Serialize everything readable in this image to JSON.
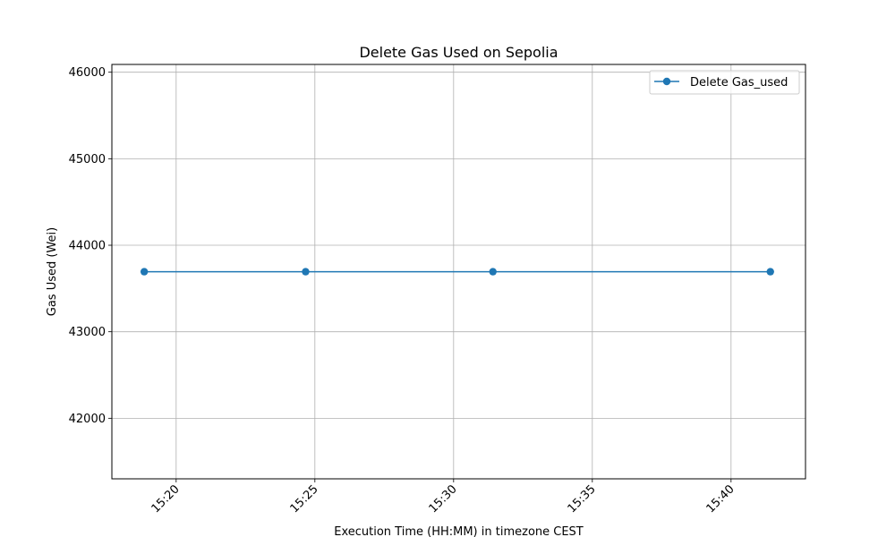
{
  "chart_data": {
    "type": "line",
    "title": "Delete Gas Used on Sepolia",
    "xlabel": "Execution Time (HH:MM) in timezone CEST",
    "ylabel": "Gas Used (Wei)",
    "x_ticks": [
      "15:20",
      "15:25",
      "15:30",
      "15:35",
      "15:40"
    ],
    "y_ticks": [
      42000,
      43000,
      44000,
      45000,
      46000
    ],
    "xlim": [
      "15:17:41",
      "15:42:41"
    ],
    "ylim": [
      41300,
      46090
    ],
    "grid": true,
    "legend_position": "top-right",
    "series": [
      {
        "name": "Delete Gas_used",
        "color": "#1f77b4",
        "marker": "circle",
        "x": [
          "15:18:51",
          "15:24:40",
          "15:31:25",
          "15:41:25"
        ],
        "y": [
          43694,
          43694,
          43694,
          43694
        ]
      }
    ]
  }
}
